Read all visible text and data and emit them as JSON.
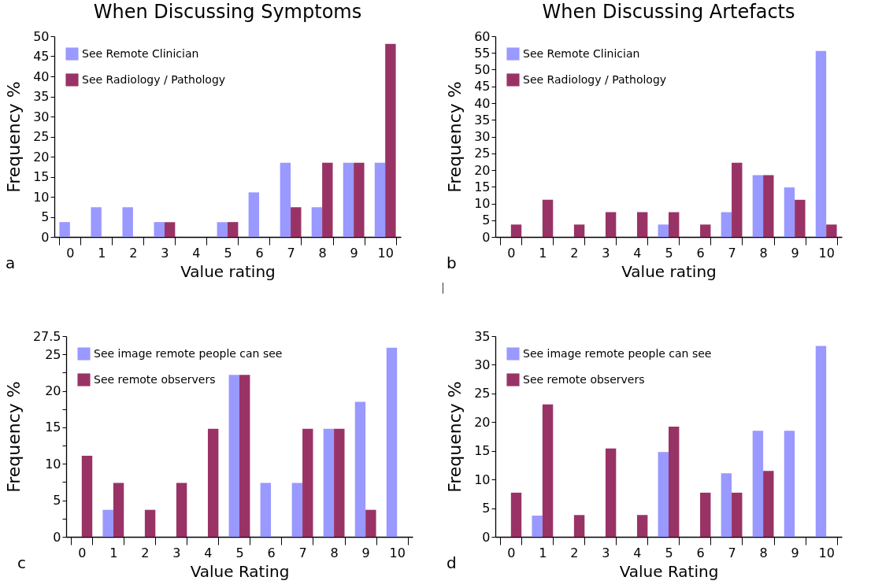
{
  "chart_data": [
    {
      "type": "bar",
      "title": "When Discussing Symptoms",
      "xlabel": "Value rating",
      "ylabel": "Frequency %",
      "categories": [
        "0",
        "1",
        "2",
        "3",
        "4",
        "5",
        "6",
        "7",
        "8",
        "9",
        "10"
      ],
      "series": [
        {
          "name": "See Remote Clinician",
          "color": "#9999ff",
          "values": [
            3.7,
            7.4,
            7.4,
            3.7,
            0,
            3.7,
            11.1,
            18.5,
            7.4,
            18.5,
            18.5
          ]
        },
        {
          "name": "See Radiology / Pathology",
          "color": "#993366",
          "values": [
            0,
            0,
            0,
            3.7,
            0,
            3.7,
            0,
            7.4,
            18.5,
            18.5,
            48.1
          ]
        }
      ],
      "ylim": [
        0,
        50
      ],
      "yticks": [
        0,
        5,
        10,
        15,
        20,
        25,
        30,
        35,
        40,
        45,
        50
      ],
      "legend": "top left",
      "annotations": [
        "a"
      ]
    },
    {
      "type": "bar",
      "title": "When Discussing Artefacts",
      "xlabel": "Value rating",
      "ylabel": "Frequency %",
      "categories": [
        "0",
        "1",
        "2",
        "3",
        "4",
        "5",
        "6",
        "7",
        "8",
        "9",
        "10"
      ],
      "series": [
        {
          "name": "See Remote Clinician",
          "color": "#9999ff",
          "values": [
            0,
            0,
            0,
            0,
            0,
            3.7,
            0,
            7.4,
            18.5,
            14.8,
            55.6
          ]
        },
        {
          "name": "See Radiology / Pathology",
          "color": "#993366",
          "values": [
            3.7,
            11.1,
            3.7,
            7.4,
            7.4,
            7.4,
            3.7,
            22.2,
            18.5,
            11.1,
            3.7
          ]
        }
      ],
      "ylim": [
        0,
        60
      ],
      "yticks": [
        0,
        5,
        10,
        15,
        20,
        25,
        30,
        35,
        40,
        45,
        50,
        55,
        60
      ],
      "legend": "top left",
      "annotations": [
        "b"
      ]
    },
    {
      "type": "bar",
      "xlabel": "Value Rating",
      "ylabel": "Frequency %",
      "categories": [
        "0",
        "1",
        "2",
        "3",
        "4",
        "5",
        "6",
        "7",
        "8",
        "9",
        "10"
      ],
      "series": [
        {
          "name": "See image remote people can see",
          "color": "#9999ff",
          "values": [
            0,
            3.7,
            0,
            0,
            0,
            22.2,
            7.4,
            7.4,
            14.8,
            18.5,
            25.9
          ]
        },
        {
          "name": "See remote observers",
          "color": "#993366",
          "values": [
            11.1,
            7.4,
            3.7,
            7.4,
            14.8,
            22.2,
            0,
            14.8,
            14.8,
            3.7,
            0
          ]
        }
      ],
      "ylim": [
        0,
        27.5
      ],
      "yticks": [
        0,
        {
          "value": 2.5,
          "label": null
        },
        5,
        {
          "value": 7.5,
          "label": null
        },
        10,
        {
          "value": 12.5,
          "label": null
        },
        15,
        {
          "value": 17.5,
          "label": null
        },
        20,
        {
          "value": 22.5,
          "label": null
        },
        25,
        27.5
      ],
      "legend": "top left",
      "annotations": [
        "c"
      ]
    },
    {
      "type": "bar",
      "xlabel": "Value Rating",
      "ylabel": "Frequency %",
      "categories": [
        "0",
        "1",
        "2",
        "3",
        "4",
        "5",
        "6",
        "7",
        "8",
        "9",
        "10"
      ],
      "series": [
        {
          "name": "See image remote people can see",
          "color": "#9999ff",
          "values": [
            0,
            3.7,
            0,
            0,
            0,
            14.8,
            0,
            11.1,
            18.5,
            18.5,
            33.3
          ]
        },
        {
          "name": "See remote observers",
          "color": "#993366",
          "values": [
            7.7,
            23.1,
            3.8,
            15.4,
            3.8,
            19.2,
            7.7,
            7.7,
            11.5,
            0,
            0
          ]
        }
      ],
      "ylim": [
        0,
        35
      ],
      "yticks": [
        0,
        5,
        10,
        15,
        20,
        25,
        30,
        35
      ],
      "legend": "top left",
      "annotations": [
        "d"
      ]
    }
  ]
}
